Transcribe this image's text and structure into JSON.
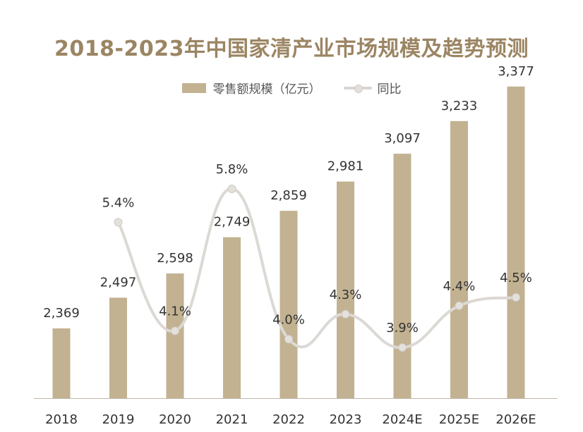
{
  "chart_data": {
    "type": "bar",
    "title": "2018-2023年中国家清产业市场规模及趋势预测",
    "categories": [
      "2018",
      "2019",
      "2020",
      "2021",
      "2022",
      "2023",
      "2024E",
      "2025E",
      "2026E"
    ],
    "series": [
      {
        "name": "零售额规模（亿元）",
        "type": "bar",
        "values": [
          2369,
          2497,
          2598,
          2749,
          2859,
          2981,
          3097,
          3233,
          3377
        ],
        "labels": [
          "2,369",
          "2,497",
          "2,598",
          "2,749",
          "2,859",
          "2,981",
          "3,097",
          "3,233",
          "3,377"
        ]
      },
      {
        "name": "同比",
        "type": "line",
        "values": [
          null,
          5.4,
          4.1,
          5.8,
          4.0,
          4.3,
          3.9,
          4.4,
          4.5
        ],
        "labels": [
          "",
          "5.4%",
          "4.1%",
          "5.8%",
          "4.0%",
          "4.3%",
          "3.9%",
          "4.4%",
          "4.5%"
        ]
      }
    ],
    "legend_position": "top-center",
    "grid": false,
    "colors": {
      "bar": "#c2b291",
      "line": "#dcd9d5",
      "marker": "#e4e1dd",
      "title": "#9b8563",
      "text": "#333333"
    }
  }
}
